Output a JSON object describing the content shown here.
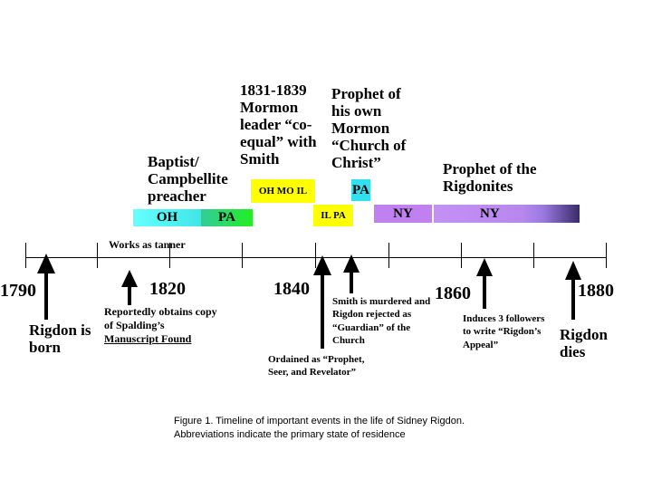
{
  "eras": {
    "baptist": "Baptist/ Campbellite preacher",
    "mormon_leader": "1831-1839 Mormon leader “co-equal” with Smith",
    "own_church": "Prophet of his own Mormon “Church of Christ”",
    "rigdonites": "Prophet of the Rigdonites"
  },
  "residence_bands": [
    {
      "label": "OH",
      "color": "#5ff3f3"
    },
    {
      "label": "PA",
      "color": "#2ecc2e"
    },
    {
      "label": "OH  MO  IL",
      "color": "#ffff00"
    },
    {
      "label": "IL PA",
      "color": "#ffff00"
    },
    {
      "label": "PA",
      "color": "#33e0f0"
    },
    {
      "label": "NY",
      "color": "#c080f0"
    },
    {
      "label": "NY",
      "color": "#b888ee"
    }
  ],
  "years": [
    "1790",
    "1820",
    "1840",
    "1860",
    "1880"
  ],
  "tanner_label": "Works as tanner",
  "events": {
    "born": "Rigdon is born",
    "spalding_prefix": "Reportedly obtains copy of Spalding’s",
    "spalding_underlined": "Manuscript Found",
    "ordained": "Ordained as “Prophet, Seer, and Revelator”",
    "smith_murdered": "Smith is murdered and Rigdon rejected as “Guardian” of the Church",
    "induces": "Induces 3 followers to write “Rigdon’s Appeal”",
    "dies": "Rigdon dies"
  },
  "caption": {
    "line1": "Figure 1.  Timeline of important events in the life of Sidney Rigdon.",
    "line2": "Abbreviations indicate the primary state of residence"
  }
}
